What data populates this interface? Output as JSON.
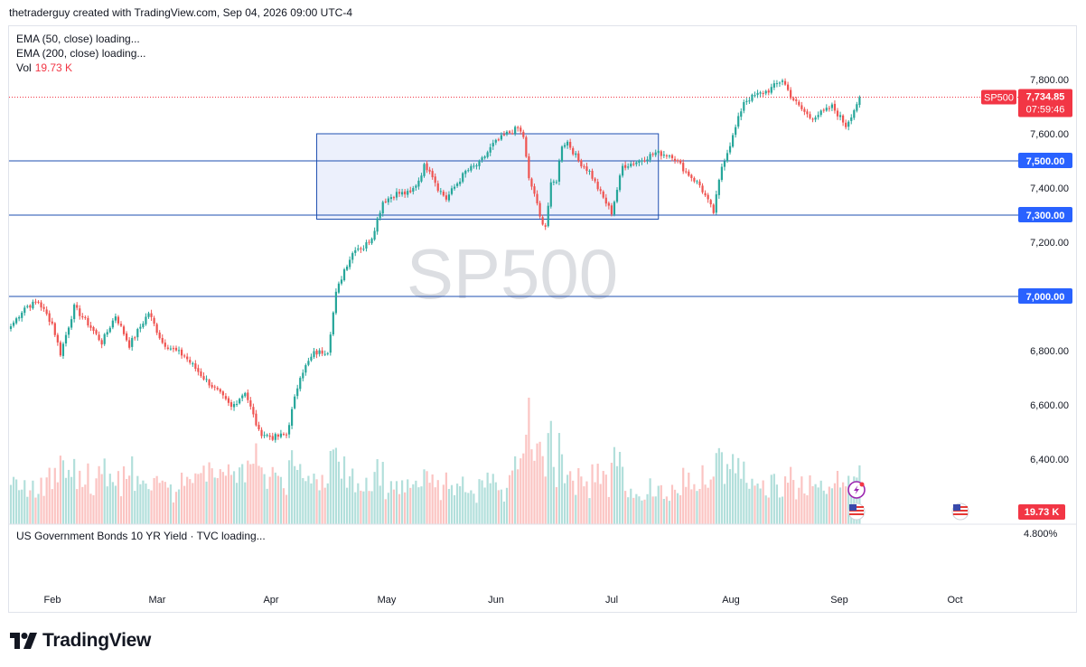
{
  "header": {
    "attribution": "thetraderguy created with TradingView.com, Sep 04, 2026 09:00 UTC-4"
  },
  "legend": {
    "ema50": "EMA (50, close) loading...",
    "ema200": "EMA (200, close) loading...",
    "vol_label": "Vol",
    "vol_value": "19.73 K"
  },
  "bottom_pane": {
    "label": "US Government Bonds 10 YR Yield · TVC loading...",
    "value": "4.800%"
  },
  "brand": {
    "name": "TradingView"
  },
  "colors": {
    "up": "#26a69a",
    "down": "#ef5350",
    "vol_up": "#b2dfdb",
    "vol_down": "#fbc4c2",
    "hline": "#1e4fb0",
    "label_bg": "#2962ff",
    "rect_fill": "#e6ebfb",
    "price_tag": "#f23645"
  },
  "chart_data": {
    "type": "candlestick",
    "symbol": "SP500",
    "watermark": "SP500",
    "last_price": "7,734.85",
    "countdown": "07:59:46",
    "volume_label": "19.73 K",
    "ylim": [
      6300,
      7860
    ],
    "price_ticks": [
      "7,800.00",
      "7,600.00",
      "7,400.00",
      "7,200.00",
      "6,800.00",
      "6,600.00",
      "6,400.00"
    ],
    "price_tick_values": [
      7800,
      7600,
      7400,
      7200,
      6800,
      6600,
      6400
    ],
    "x_labels": [
      "Feb",
      "Mar",
      "Apr",
      "May",
      "Jun",
      "Jul",
      "Aug",
      "Sep",
      "Oct"
    ],
    "horizontal_lines": [
      {
        "value": 7500,
        "label": "7,500.00"
      },
      {
        "value": 7300,
        "label": "7,300.00"
      },
      {
        "value": 7000,
        "label": "7,000.00"
      }
    ],
    "range_box": {
      "top": 7600,
      "bottom": 7285,
      "start_bar": 111,
      "end_bar": 235
    },
    "close_path": [
      [
        0,
        6890
      ],
      [
        5,
        6960
      ],
      [
        10,
        6980
      ],
      [
        15,
        6900
      ],
      [
        18,
        6790
      ],
      [
        23,
        6960
      ],
      [
        28,
        6900
      ],
      [
        33,
        6830
      ],
      [
        38,
        6930
      ],
      [
        43,
        6820
      ],
      [
        50,
        6940
      ],
      [
        55,
        6830
      ],
      [
        58,
        6810
      ],
      [
        63,
        6780
      ],
      [
        70,
        6700
      ],
      [
        75,
        6650
      ],
      [
        80,
        6590
      ],
      [
        85,
        6650
      ],
      [
        90,
        6500
      ],
      [
        95,
        6480
      ],
      [
        100,
        6490
      ],
      [
        105,
        6710
      ],
      [
        110,
        6790
      ],
      [
        115,
        6800
      ],
      [
        118,
        7010
      ],
      [
        121,
        7100
      ],
      [
        125,
        7180
      ],
      [
        128,
        7180
      ],
      [
        131,
        7220
      ],
      [
        135,
        7350
      ],
      [
        140,
        7380
      ],
      [
        145,
        7380
      ],
      [
        148,
        7430
      ],
      [
        150,
        7480
      ],
      [
        152,
        7470
      ],
      [
        155,
        7400
      ],
      [
        158,
        7360
      ],
      [
        160,
        7390
      ],
      [
        165,
        7460
      ],
      [
        170,
        7490
      ],
      [
        175,
        7560
      ],
      [
        180,
        7600
      ],
      [
        184,
        7620
      ],
      [
        186,
        7590
      ],
      [
        188,
        7430
      ],
      [
        190,
        7380
      ],
      [
        192,
        7290
      ],
      [
        194,
        7260
      ],
      [
        196,
        7410
      ],
      [
        198,
        7430
      ],
      [
        200,
        7560
      ],
      [
        202,
        7570
      ],
      [
        206,
        7500
      ],
      [
        210,
        7460
      ],
      [
        214,
        7380
      ],
      [
        218,
        7310
      ],
      [
        222,
        7480
      ],
      [
        228,
        7500
      ],
      [
        234,
        7530
      ],
      [
        240,
        7520
      ],
      [
        245,
        7460
      ],
      [
        250,
        7410
      ],
      [
        255,
        7310
      ],
      [
        258,
        7480
      ],
      [
        262,
        7590
      ],
      [
        266,
        7720
      ],
      [
        270,
        7740
      ],
      [
        275,
        7760
      ],
      [
        280,
        7800
      ],
      [
        283,
        7740
      ],
      [
        286,
        7700
      ],
      [
        290,
        7660
      ],
      [
        295,
        7680
      ],
      [
        298,
        7700
      ],
      [
        301,
        7660
      ],
      [
        303,
        7630
      ],
      [
        306,
        7690
      ],
      [
        308,
        7735
      ]
    ]
  }
}
